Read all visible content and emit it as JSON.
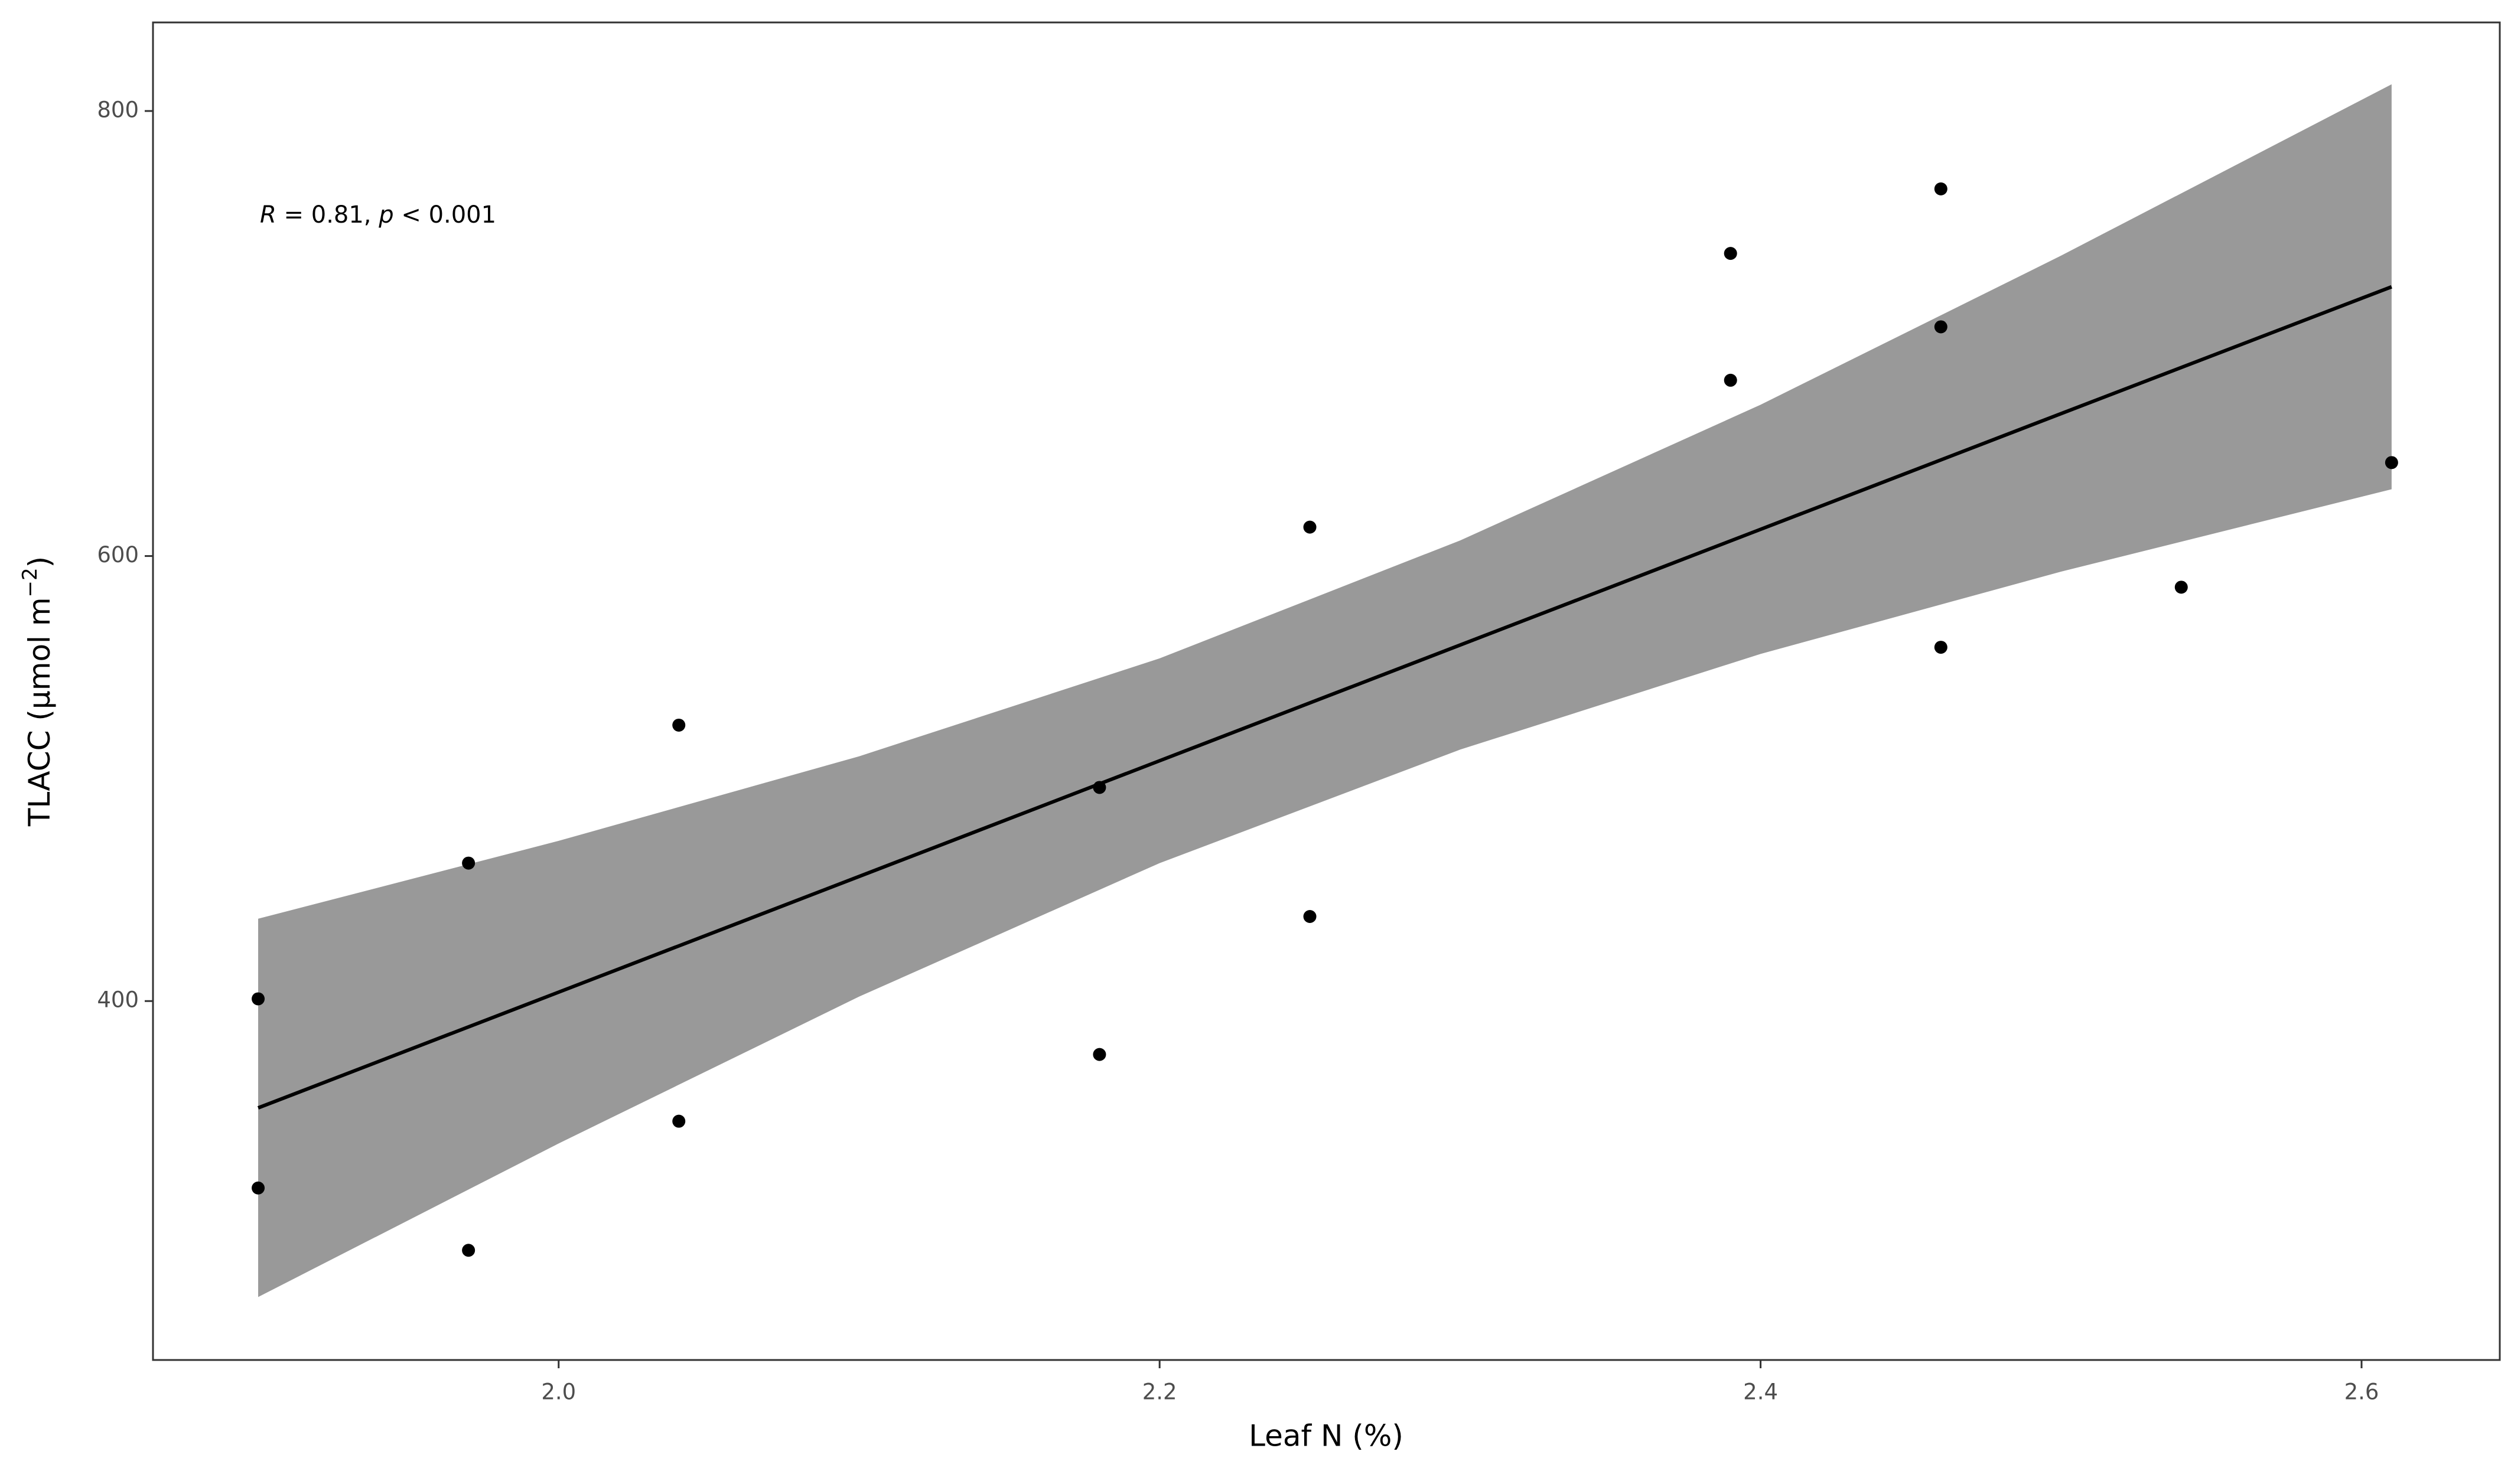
{
  "chart_data": {
    "type": "scatter",
    "xlabel": "Leaf N (%)",
    "ylabel": [
      {
        "text": "TLACC (μmol m",
        "sup": false
      },
      {
        "text": "−2",
        "sup": true
      },
      {
        "text": ")",
        "sup": false
      }
    ],
    "annotation": [
      {
        "text": "R",
        "italic": true
      },
      {
        "text": " = 0.81, ",
        "italic": false
      },
      {
        "text": "p",
        "italic": true
      },
      {
        "text": " < 0.001",
        "italic": false
      }
    ],
    "x": [
      1.9,
      1.9,
      1.97,
      1.97,
      2.04,
      2.04,
      2.18,
      2.18,
      2.25,
      2.25,
      2.39,
      2.39,
      2.46,
      2.46,
      2.46,
      2.54,
      2.61
    ],
    "values": [
      401,
      316,
      462,
      288,
      524,
      346,
      496,
      376,
      613,
      438,
      736,
      679,
      765,
      703,
      559,
      586,
      642
    ],
    "color": "#000000",
    "fit": {
      "x": [
        1.9,
        2.0,
        2.1,
        2.2,
        2.3,
        2.4,
        2.5,
        2.61
      ],
      "values": [
        352,
        404,
        456,
        508,
        560,
        612,
        664,
        721
      ],
      "lower": [
        267,
        336,
        402,
        462,
        513,
        556,
        593,
        630
      ],
      "upper": [
        437,
        472,
        510,
        554,
        607,
        668,
        735,
        812
      ],
      "color": "#000000",
      "band_color": "#999999"
    },
    "xlim": [
      1.865,
      2.646
    ],
    "ylim": [
      238.7,
      839.8
    ],
    "xticks": [
      {
        "value": 2,
        "label": "2.0"
      },
      {
        "value": 2.2,
        "label": "2.2"
      },
      {
        "value": 2.4,
        "label": "2.4"
      },
      {
        "value": 2.6,
        "label": "2.6"
      }
    ],
    "yticks": [
      400,
      600,
      800
    ],
    "grid": false
  }
}
